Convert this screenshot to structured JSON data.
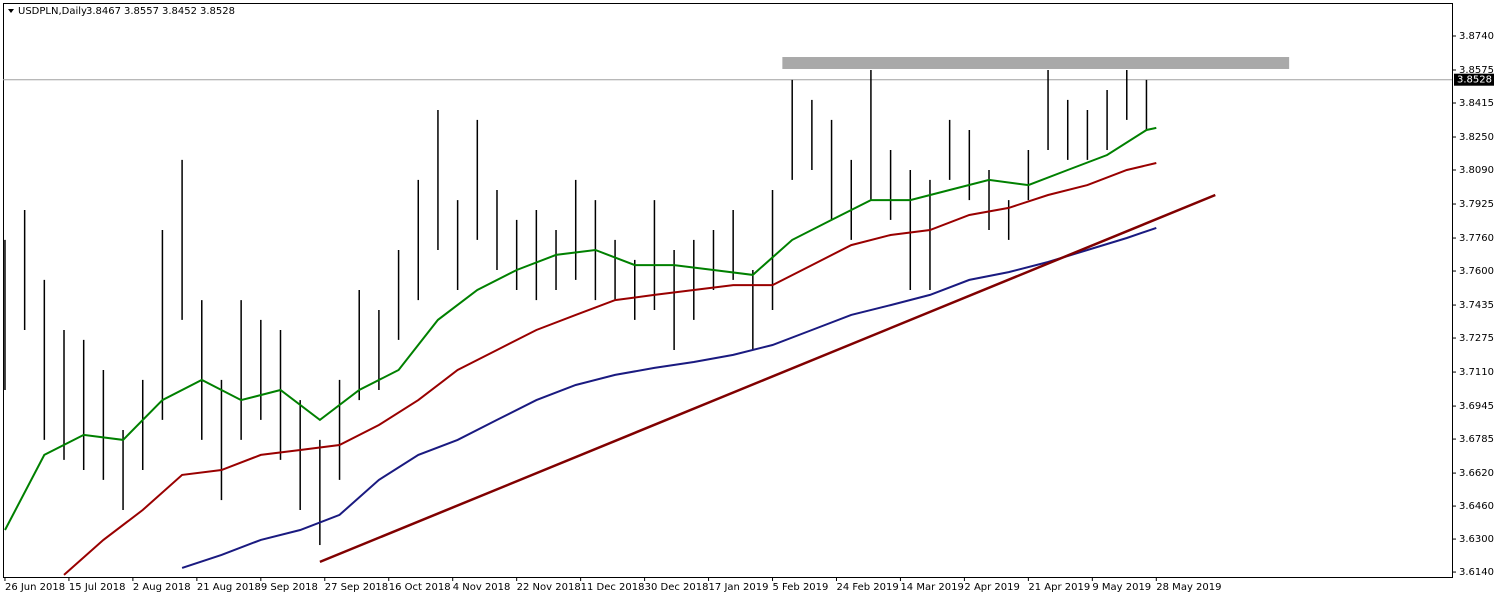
{
  "chart_data": {
    "type": "ohlc",
    "title": "USDPLN,Daily",
    "last_bar": {
      "open": 3.8467,
      "high": 3.8557,
      "low": 3.8452,
      "close": 3.8528
    },
    "current_price": 3.8528,
    "xlim": [
      -0.4,
      294.1
    ],
    "ylim": [
      3.6116,
      3.89
    ],
    "yticks": [
      {
        "value": 3.874,
        "label": "3.8740"
      },
      3.8575,
      3.8415,
      {
        "value": 3.825,
        "label": "3.8250"
      },
      {
        "value": 3.809,
        "label": "3.8090"
      },
      3.7925,
      {
        "value": 3.776,
        "label": "3.7760"
      },
      {
        "value": 3.76,
        "label": "3.7600"
      },
      3.7435,
      3.7275,
      {
        "value": 3.711,
        "label": "3.7110"
      },
      3.6945,
      3.6785,
      {
        "value": 3.662,
        "label": "3.6620"
      },
      {
        "value": 3.646,
        "label": "3.6460"
      },
      {
        "value": 3.63,
        "label": "3.6300"
      },
      {
        "value": 3.614,
        "label": "3.6140"
      }
    ],
    "xticks": [
      {
        "value": 0,
        "label": "26 Jun 2018"
      },
      {
        "value": 13,
        "label": "15 Jul 2018"
      },
      {
        "value": 26,
        "label": "2 Aug 2018"
      },
      {
        "value": 39,
        "label": "21 Aug 2018"
      },
      {
        "value": 52,
        "label": "9 Sep 2018"
      },
      {
        "value": 65,
        "label": "27 Sep 2018"
      },
      {
        "value": 78,
        "label": "16 Oct 2018"
      },
      {
        "value": 91,
        "label": "4 Nov 2018"
      },
      {
        "value": 104,
        "label": "22 Nov 2018"
      },
      {
        "value": 117,
        "label": "11 Dec 2018"
      },
      {
        "value": 130,
        "label": "30 Dec 2018"
      },
      {
        "value": 143,
        "label": "17 Jan 2019"
      },
      {
        "value": 156,
        "label": "5 Feb 2019"
      },
      {
        "value": 169,
        "label": "24 Feb 2019"
      },
      {
        "value": 182,
        "label": "14 Mar 2019"
      },
      {
        "value": 195,
        "label": "2 Apr 2019"
      },
      {
        "value": 208,
        "label": "21 Apr 2019"
      },
      {
        "value": 221,
        "label": "9 May 2019"
      },
      {
        "value": 234,
        "label": "28 May 2019"
      }
    ],
    "bars": {
      "color": "#000000",
      "x": [
        0,
        4,
        8,
        12,
        16,
        20,
        24,
        28,
        32,
        36,
        40,
        44,
        48,
        52,
        56,
        60,
        64,
        68,
        72,
        76,
        80,
        84,
        88,
        92,
        96,
        100,
        104,
        108,
        112,
        116,
        120,
        124,
        128,
        132,
        136,
        140,
        144,
        148,
        152,
        156,
        160,
        164,
        168,
        172,
        176,
        180,
        184,
        188,
        192,
        196,
        200,
        204,
        208,
        212,
        216,
        220,
        224,
        228,
        232
      ],
      "high": [
        3.7751,
        3.7896,
        3.7557,
        3.7314,
        3.7266,
        3.712,
        3.6829,
        3.7072,
        3.7799,
        3.8139,
        3.7459,
        3.7072,
        3.7459,
        3.7363,
        3.7314,
        3.6974,
        3.6781,
        3.7072,
        3.7508,
        3.7411,
        3.7702,
        3.8042,
        3.8381,
        3.7944,
        3.8333,
        3.7993,
        3.7848,
        3.7896,
        3.7799,
        3.8042,
        3.7944,
        3.7751,
        3.7654,
        3.7944,
        3.7702,
        3.7751,
        3.7799,
        3.7896,
        3.7605,
        3.7993,
        3.8527,
        3.843,
        3.8333,
        3.8139,
        3.8575,
        3.8187,
        3.809,
        3.8042,
        3.8333,
        3.8284,
        3.809,
        3.7944,
        3.8187,
        3.8575,
        3.843,
        3.8381,
        3.8478,
        3.8575,
        3.8527
      ],
      "low": [
        3.7023,
        3.7314,
        3.6781,
        3.6684,
        3.6635,
        3.6587,
        3.6441,
        3.6635,
        3.6878,
        3.7363,
        3.6781,
        3.6489,
        3.6781,
        3.6878,
        3.6684,
        3.6441,
        3.6271,
        3.6587,
        3.6974,
        3.7023,
        3.7266,
        3.7459,
        3.7702,
        3.7508,
        3.7751,
        3.7605,
        3.7508,
        3.7459,
        3.7508,
        3.7557,
        3.7459,
        3.7459,
        3.7363,
        3.7411,
        3.7217,
        3.7363,
        3.7508,
        3.7557,
        3.7217,
        3.7411,
        3.8042,
        3.809,
        3.7848,
        3.7751,
        3.7944,
        3.7848,
        3.7508,
        3.7508,
        3.8042,
        3.7944,
        3.7799,
        3.7751,
        3.7944,
        3.8187,
        3.8139,
        3.8139,
        3.8187,
        3.8333,
        3.8284
      ]
    },
    "lines": [
      {
        "color": "#008000",
        "x": [
          0,
          8,
          16,
          24,
          32,
          40,
          48,
          56,
          64,
          72,
          80,
          88,
          96,
          104,
          112,
          120,
          128,
          136,
          144,
          152,
          160,
          168,
          176,
          184,
          192,
          200,
          208,
          216,
          224,
          232,
          234
        ],
        "values": [
          3.6344,
          3.6708,
          3.6805,
          3.6781,
          3.6974,
          3.7072,
          3.6974,
          3.7023,
          3.6878,
          3.7023,
          3.712,
          3.7363,
          3.7508,
          3.7605,
          3.7678,
          3.7702,
          3.7629,
          3.7629,
          3.7605,
          3.7581,
          3.7751,
          3.7848,
          3.7944,
          3.7944,
          3.7993,
          3.8042,
          3.8017,
          3.809,
          3.8163,
          3.8284,
          3.8294
        ]
      },
      {
        "color": "#990000",
        "x": [
          12,
          20,
          28,
          36,
          44,
          52,
          60,
          68,
          76,
          84,
          92,
          100,
          108,
          116,
          124,
          132,
          140,
          148,
          156,
          164,
          172,
          180,
          188,
          196,
          204,
          212,
          220,
          228,
          234
        ],
        "values": [
          3.6126,
          3.6296,
          3.6441,
          3.6611,
          3.6635,
          3.6708,
          3.6732,
          3.6756,
          3.6853,
          3.6974,
          3.712,
          3.7217,
          3.7314,
          3.7387,
          3.7459,
          3.7484,
          3.7508,
          3.7532,
          3.7532,
          3.7629,
          3.7726,
          3.7775,
          3.7799,
          3.7872,
          3.7906,
          3.7969,
          3.8017,
          3.809,
          3.8124
        ]
      },
      {
        "color": "#1a1a80",
        "x": [
          36,
          44,
          52,
          60,
          68,
          76,
          84,
          92,
          100,
          108,
          116,
          124,
          132,
          140,
          148,
          156,
          164,
          172,
          180,
          188,
          196,
          204,
          212,
          220,
          228,
          234
        ],
        "values": [
          3.616,
          3.6223,
          3.6296,
          3.6344,
          3.6417,
          3.6587,
          3.6708,
          3.6781,
          3.6878,
          3.6974,
          3.7047,
          3.7096,
          3.713,
          3.7159,
          3.7193,
          3.7241,
          3.7314,
          3.7387,
          3.7435,
          3.7484,
          3.7557,
          3.7595,
          3.7644,
          3.7702,
          3.776,
          3.7809
        ]
      }
    ],
    "trendline": {
      "color": "#800000",
      "x": [
        64,
        246
      ],
      "values": [
        3.6189,
        3.7969
      ]
    },
    "zone": {
      "color": "#a9a9a9",
      "x": [
        158,
        261
      ],
      "values": [
        3.8638,
        3.858
      ]
    }
  }
}
